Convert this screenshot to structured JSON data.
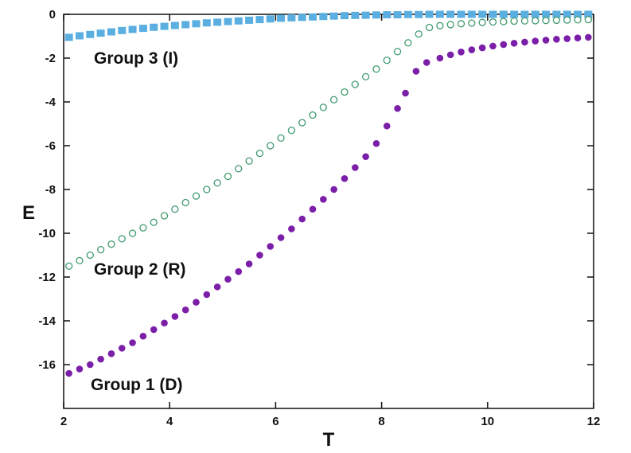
{
  "chart_data": {
    "type": "scatter",
    "xlabel": "T",
    "ylabel": "E",
    "xlim": [
      2,
      12
    ],
    "ylim": [
      -18,
      0
    ],
    "x_ticks": [
      2,
      4,
      6,
      8,
      10,
      12
    ],
    "y_ticks": [
      0,
      -2,
      -4,
      -6,
      -8,
      -10,
      -12,
      -14,
      -16
    ],
    "grid": false,
    "series": [
      {
        "name": "Group 3 (I)",
        "marker": "square",
        "color": "#5aafe0",
        "x": [
          2.1,
          2.3,
          2.5,
          2.7,
          2.9,
          3.1,
          3.3,
          3.5,
          3.7,
          3.9,
          4.1,
          4.3,
          4.5,
          4.7,
          4.9,
          5.1,
          5.3,
          5.5,
          5.7,
          5.9,
          6.1,
          6.3,
          6.5,
          6.7,
          6.9,
          7.1,
          7.3,
          7.5,
          7.7,
          7.9,
          8.1,
          8.3,
          8.5,
          8.7,
          8.9,
          9.1,
          9.3,
          9.5,
          9.7,
          9.9,
          10.1,
          10.3,
          10.5,
          10.7,
          10.9,
          11.1,
          11.3,
          11.5,
          11.7,
          11.9
        ],
        "y": [
          -1.05,
          -0.98,
          -0.92,
          -0.86,
          -0.8,
          -0.74,
          -0.69,
          -0.64,
          -0.59,
          -0.55,
          -0.51,
          -0.47,
          -0.43,
          -0.39,
          -0.36,
          -0.33,
          -0.3,
          -0.27,
          -0.24,
          -0.21,
          -0.18,
          -0.16,
          -0.14,
          -0.12,
          -0.1,
          -0.08,
          -0.06,
          -0.05,
          -0.04,
          -0.03,
          -0.02,
          -0.02,
          -0.01,
          -0.01,
          0,
          0,
          0,
          0,
          0,
          0,
          0,
          0,
          0,
          0,
          0,
          0,
          0,
          0,
          0,
          0
        ]
      },
      {
        "name": "Group 2 (R)",
        "marker": "open-circle",
        "color": "#3f9a6e",
        "x": [
          2.1,
          2.3,
          2.5,
          2.7,
          2.9,
          3.1,
          3.3,
          3.5,
          3.7,
          3.9,
          4.1,
          4.3,
          4.5,
          4.7,
          4.9,
          5.1,
          5.3,
          5.5,
          5.7,
          5.9,
          6.1,
          6.3,
          6.5,
          6.7,
          6.9,
          7.1,
          7.3,
          7.5,
          7.7,
          7.9,
          8.1,
          8.3,
          8.5,
          8.7,
          8.9,
          9.1,
          9.3,
          9.5,
          9.7,
          9.9,
          10.1,
          10.3,
          10.5,
          10.7,
          10.9,
          11.1,
          11.3,
          11.5,
          11.7,
          11.9
        ],
        "y": [
          -11.5,
          -11.25,
          -11.0,
          -10.75,
          -10.5,
          -10.25,
          -10.0,
          -9.75,
          -9.5,
          -9.2,
          -8.9,
          -8.6,
          -8.3,
          -8.0,
          -7.7,
          -7.4,
          -7.05,
          -6.7,
          -6.35,
          -6.0,
          -5.65,
          -5.3,
          -4.95,
          -4.6,
          -4.25,
          -3.9,
          -3.55,
          -3.2,
          -2.85,
          -2.5,
          -2.1,
          -1.7,
          -1.3,
          -0.9,
          -0.6,
          -0.52,
          -0.47,
          -0.43,
          -0.4,
          -0.37,
          -0.35,
          -0.33,
          -0.31,
          -0.3,
          -0.29,
          -0.28,
          -0.27,
          -0.26,
          -0.25,
          -0.24
        ]
      },
      {
        "name": "Group 1 (D)",
        "marker": "filled-circle",
        "color": "#7b1fa8",
        "x": [
          2.1,
          2.3,
          2.5,
          2.7,
          2.9,
          3.1,
          3.3,
          3.5,
          3.7,
          3.9,
          4.1,
          4.3,
          4.5,
          4.7,
          4.9,
          5.1,
          5.3,
          5.5,
          5.7,
          5.9,
          6.1,
          6.3,
          6.5,
          6.7,
          6.9,
          7.1,
          7.3,
          7.5,
          7.7,
          7.9,
          8.1,
          8.3,
          8.45,
          8.65,
          8.85,
          9.1,
          9.3,
          9.5,
          9.7,
          9.9,
          10.1,
          10.3,
          10.5,
          10.7,
          10.9,
          11.1,
          11.3,
          11.5,
          11.7,
          11.9
        ],
        "y": [
          -16.4,
          -16.2,
          -16.0,
          -15.75,
          -15.5,
          -15.25,
          -15.0,
          -14.7,
          -14.4,
          -14.1,
          -13.8,
          -13.5,
          -13.15,
          -12.8,
          -12.45,
          -12.1,
          -11.75,
          -11.4,
          -11.0,
          -10.6,
          -10.2,
          -9.8,
          -9.35,
          -8.9,
          -8.45,
          -8.0,
          -7.5,
          -7.0,
          -6.5,
          -5.9,
          -5.1,
          -4.3,
          -3.6,
          -2.6,
          -2.2,
          -2.0,
          -1.85,
          -1.72,
          -1.62,
          -1.53,
          -1.45,
          -1.38,
          -1.32,
          -1.27,
          -1.22,
          -1.18,
          -1.14,
          -1.11,
          -1.08,
          -1.05
        ]
      }
    ]
  }
}
